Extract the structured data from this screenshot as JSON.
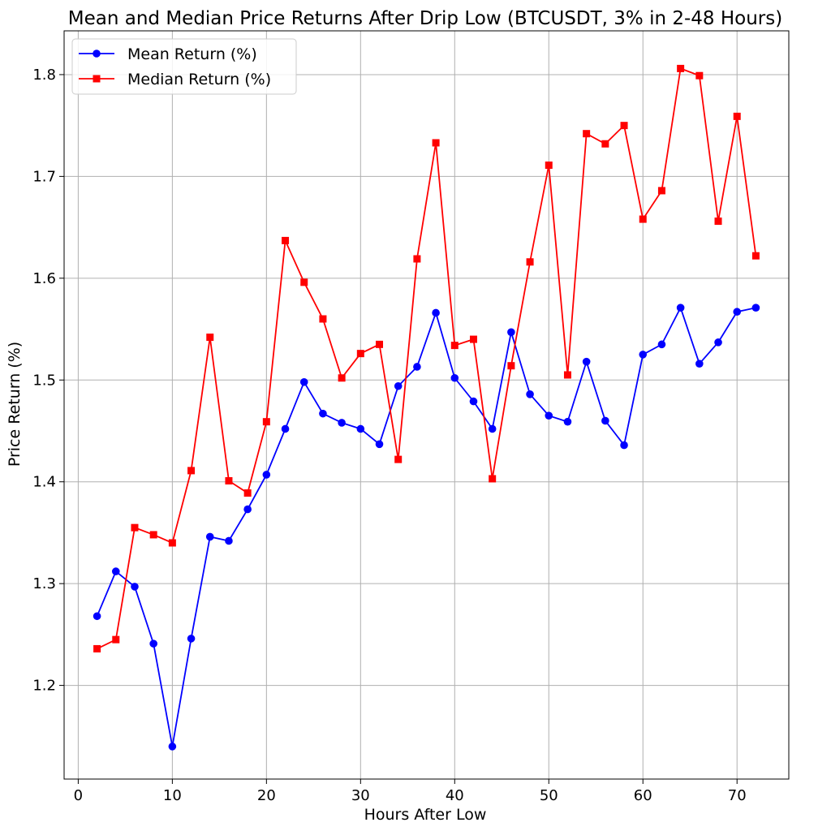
{
  "chart_data": {
    "type": "line",
    "title": "Mean and Median Price Returns After Drip Low (BTCUSDT, 3% in 2-48 Hours)",
    "xlabel": "Hours After Low",
    "ylabel": "Price Return (%)",
    "xlim": [
      -1.5,
      75.5
    ],
    "ylim": [
      1.108,
      1.843
    ],
    "xticks": [
      0,
      10,
      20,
      30,
      40,
      50,
      60,
      70
    ],
    "yticks": [
      1.2,
      1.3,
      1.4,
      1.5,
      1.6,
      1.7,
      1.8
    ],
    "grid": true,
    "legend_position": "upper-left",
    "x": [
      2,
      4,
      6,
      8,
      10,
      12,
      14,
      16,
      18,
      20,
      22,
      24,
      26,
      28,
      30,
      32,
      34,
      36,
      38,
      40,
      42,
      44,
      46,
      48,
      50,
      52,
      54,
      56,
      58,
      60,
      62,
      64,
      66,
      68,
      70,
      72
    ],
    "series": [
      {
        "name": "Mean Return (%)",
        "color": "#0000ff",
        "marker": "circle",
        "values": [
          1.268,
          1.312,
          1.297,
          1.241,
          1.14,
          1.246,
          1.346,
          1.342,
          1.373,
          1.407,
          1.452,
          1.498,
          1.467,
          1.458,
          1.452,
          1.437,
          1.494,
          1.513,
          1.566,
          1.502,
          1.479,
          1.452,
          1.547,
          1.486,
          1.465,
          1.459,
          1.518,
          1.46,
          1.436,
          1.525,
          1.535,
          1.571,
          1.516,
          1.537,
          1.567,
          1.571
        ]
      },
      {
        "name": "Median Return (%)",
        "color": "#ff0000",
        "marker": "square",
        "values": [
          1.236,
          1.245,
          1.355,
          1.348,
          1.34,
          1.411,
          1.542,
          1.401,
          1.389,
          1.459,
          1.637,
          1.596,
          1.56,
          1.502,
          1.526,
          1.535,
          1.422,
          1.619,
          1.733,
          1.534,
          1.54,
          1.403,
          1.514,
          1.616,
          1.711,
          1.505,
          1.742,
          1.732,
          1.75,
          1.658,
          1.686,
          1.806,
          1.799,
          1.656,
          1.759,
          1.622
        ]
      }
    ]
  }
}
